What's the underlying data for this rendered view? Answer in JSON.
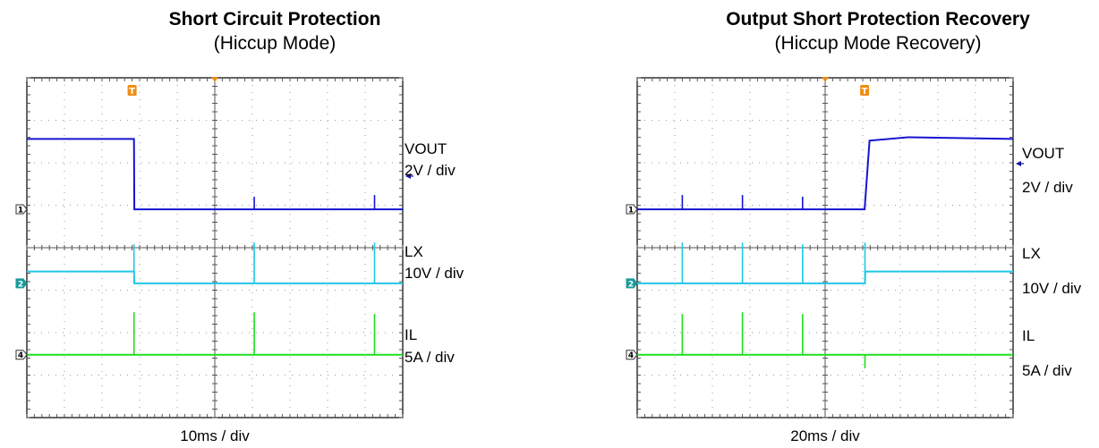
{
  "chart_data": [
    {
      "type": "line",
      "title": "Short Circuit Protection",
      "subtitle": "(Hiccup Mode)",
      "xlabel": "10ms / div",
      "xlim": [
        0,
        100
      ],
      "ylim": [
        0,
        10
      ],
      "grid": true,
      "trigger_marker": "T",
      "series": [
        {
          "name": "VOUT",
          "scale": "2V / div",
          "channel": "1",
          "color": "#1414d2",
          "baseline": 6.13,
          "x": [
            0,
            28.5,
            28.6,
            100
          ],
          "y": [
            8.2,
            8.2,
            6.13,
            6.13
          ],
          "spikes": [
            {
              "x": 60.5,
              "y": 6.5
            },
            {
              "x": 92.5,
              "y": 6.55
            }
          ]
        },
        {
          "name": "LX",
          "scale": "10V / div",
          "channel": "2",
          "color": "#1ec8e6",
          "baseline": 3.95,
          "x": [
            0,
            28.5,
            28.6,
            100
          ],
          "y": [
            4.3,
            4.3,
            3.95,
            3.95
          ],
          "spikes": [
            {
              "x": 28.5,
              "y": 5.1
            },
            {
              "x": 60.5,
              "y": 5.15
            },
            {
              "x": 92.5,
              "y": 5.15
            }
          ]
        },
        {
          "name": "IL",
          "scale": "5A / div",
          "channel": "4",
          "color": "#1ede1e",
          "baseline": 1.85,
          "x": [
            0,
            100
          ],
          "y": [
            1.85,
            1.85
          ],
          "spikes": [
            {
              "x": 28.5,
              "y": 3.1
            },
            {
              "x": 60.5,
              "y": 3.1
            },
            {
              "x": 92.5,
              "y": 3.05
            }
          ]
        }
      ]
    },
    {
      "type": "line",
      "title": "Output Short Protection Recovery",
      "subtitle": "(Hiccup Mode Recovery)",
      "xlabel": "20ms / div",
      "xlim": [
        0,
        100
      ],
      "ylim": [
        0,
        10
      ],
      "grid": true,
      "trigger_marker": "T",
      "series": [
        {
          "name": "VOUT",
          "scale": "2V / div",
          "channel": "1",
          "color": "#1414d2",
          "baseline": 6.13,
          "x": [
            0,
            60.5,
            61.8,
            72,
            100
          ],
          "y": [
            6.13,
            6.13,
            8.15,
            8.25,
            8.2
          ],
          "spikes": [
            {
              "x": 12,
              "y": 6.55
            },
            {
              "x": 28,
              "y": 6.55
            },
            {
              "x": 44,
              "y": 6.5
            }
          ]
        },
        {
          "name": "LX",
          "scale": "10V / div",
          "channel": "2",
          "color": "#1ec8e6",
          "baseline": 3.95,
          "x": [
            0,
            60.6,
            60.7,
            100
          ],
          "y": [
            3.95,
            3.95,
            4.3,
            4.3
          ],
          "spikes": [
            {
              "x": 12,
              "y": 5.15
            },
            {
              "x": 28,
              "y": 5.15
            },
            {
              "x": 44,
              "y": 5.1
            },
            {
              "x": 60.6,
              "y": 5.15
            }
          ]
        },
        {
          "name": "IL",
          "scale": "5A / div",
          "channel": "4",
          "color": "#1ede1e",
          "baseline": 1.85,
          "x": [
            0,
            100
          ],
          "y": [
            1.85,
            1.85
          ],
          "spikes": [
            {
              "x": 12,
              "y": 3.05
            },
            {
              "x": 28,
              "y": 3.1
            },
            {
              "x": 44,
              "y": 3.05
            },
            {
              "x": 60.6,
              "y": 1.45
            }
          ]
        }
      ]
    }
  ]
}
